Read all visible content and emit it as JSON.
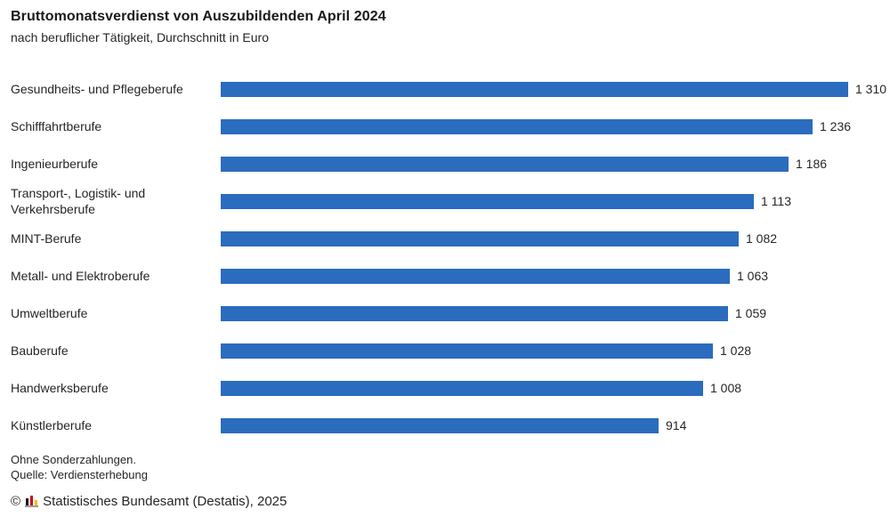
{
  "header": {
    "title": "Bruttomonatsverdienst von Auszubildenden April 2024",
    "subtitle": "nach beruflicher Tätigkeit, Durchschnitt in Euro"
  },
  "chart_data": {
    "type": "bar",
    "orientation": "horizontal",
    "title": "Bruttomonatsverdienst von Auszubildenden April 2024",
    "subtitle": "nach beruflicher Tätigkeit, Durchschnitt in Euro",
    "unit": "Euro",
    "categories": [
      "Gesundheits- und Pflegeberufe",
      "Schifffahrtberufe",
      "Ingenieurberufe",
      "Transport-, Logistik- und Verkehrsberufe",
      "MINT-Berufe",
      "Metall- und Elektroberufe",
      "Umweltberufe",
      "Bauberufe",
      "Handwerksberufe",
      "Künstlerberufe"
    ],
    "values": [
      1310,
      1236,
      1186,
      1113,
      1082,
      1063,
      1059,
      1028,
      1008,
      914
    ],
    "value_labels": [
      "1 310",
      "1 236",
      "1 186",
      "1 113",
      "1 082",
      "1 063",
      "1 059",
      "1 028",
      "1 008",
      "914"
    ],
    "xlim": [
      0,
      1310
    ],
    "bar_color": "#2b6cbe",
    "grid": false,
    "legend": false,
    "value_labels_position": "end-of-bar"
  },
  "footer": {
    "note_line1": "Ohne Sonderzahlungen.",
    "note_line2": "Quelle: Verdiensterhebung",
    "copyright_symbol": "©",
    "copyright_text": "Statistisches Bundesamt (Destatis), 2025",
    "logo_icon": "destatis-mini-barchart",
    "logo_colors": {
      "black": "#1a1a1a",
      "red": "#d0021b",
      "gold": "#f5bd0c",
      "baseline": "#9b9b9b"
    }
  }
}
